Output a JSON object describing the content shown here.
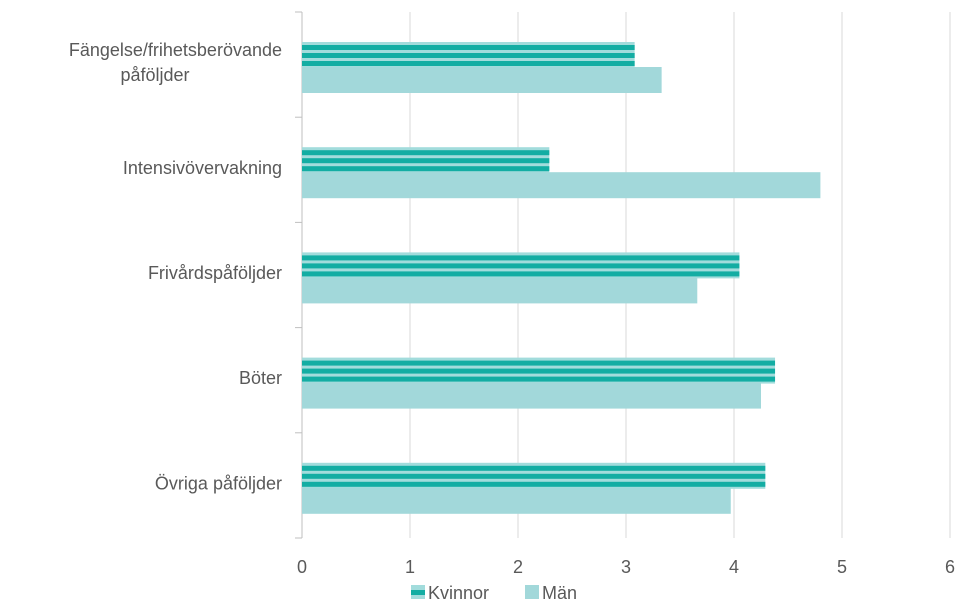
{
  "chart_data": {
    "type": "bar",
    "orientation": "horizontal",
    "categories": [
      [
        "Fängelse/frihetsberövande",
        "påföljder"
      ],
      [
        "Intensivövervakning"
      ],
      [
        "Frivårdspåföljder"
      ],
      [
        "Böter"
      ],
      [
        "Övriga påföljder"
      ]
    ],
    "series": [
      {
        "name": "Kvinnor",
        "values": [
          3.08,
          2.29,
          4.05,
          4.38,
          4.29
        ]
      },
      {
        "name": "Män",
        "values": [
          3.33,
          4.8,
          3.66,
          4.25,
          3.97
        ]
      }
    ],
    "xlim": [
      0,
      6
    ],
    "x_ticks": [
      "0",
      "1",
      "2",
      "3",
      "4",
      "5",
      "6"
    ],
    "grid": "vertical",
    "legend_position": "bottom",
    "colors": {
      "Kvinnor": "#13ada3",
      "Kvinnor_light": "#a2dcdc",
      "Män": "#a2d8da",
      "grid": "#d9d9d9",
      "axis": "#bfbfbf"
    }
  }
}
